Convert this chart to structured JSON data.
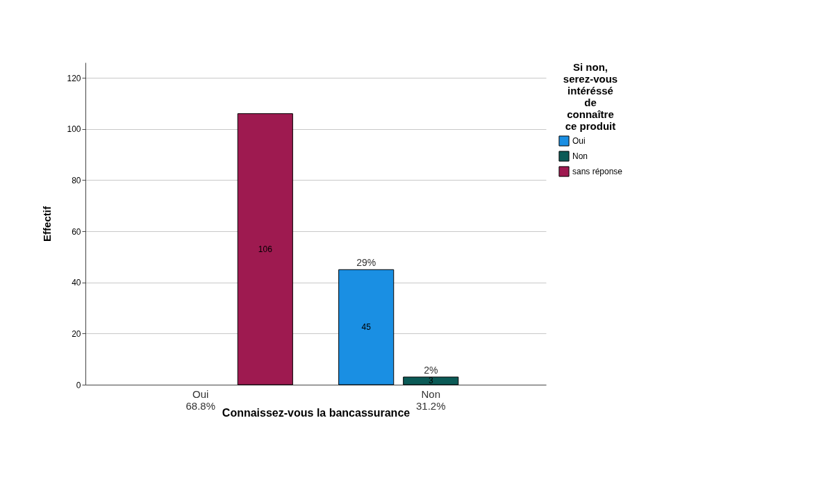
{
  "chart_data": {
    "type": "bar",
    "xlabel": "Connaissez-vous la bancassurance",
    "ylabel": "Effectif",
    "legend_title": "Si non, serez-vous intéréssé de connaître ce produit",
    "categories": [
      "Oui\n68.8%",
      "Non\n31.2%"
    ],
    "series": [
      {
        "name": "Oui",
        "color": "#1a8fe3",
        "values": [
          null,
          45
        ]
      },
      {
        "name": "Non",
        "color": "#0b5a56",
        "values": [
          null,
          3
        ]
      },
      {
        "name": "sans réponse",
        "color": "#9e1a50",
        "values": [
          106,
          null
        ]
      }
    ],
    "annotations": [
      "29%",
      "2%"
    ],
    "ylim": [
      0,
      126
    ],
    "yticks": [
      0,
      20,
      40,
      60,
      80,
      100,
      120
    ],
    "grid": "y",
    "legend": "top right",
    "data_labels": true
  }
}
